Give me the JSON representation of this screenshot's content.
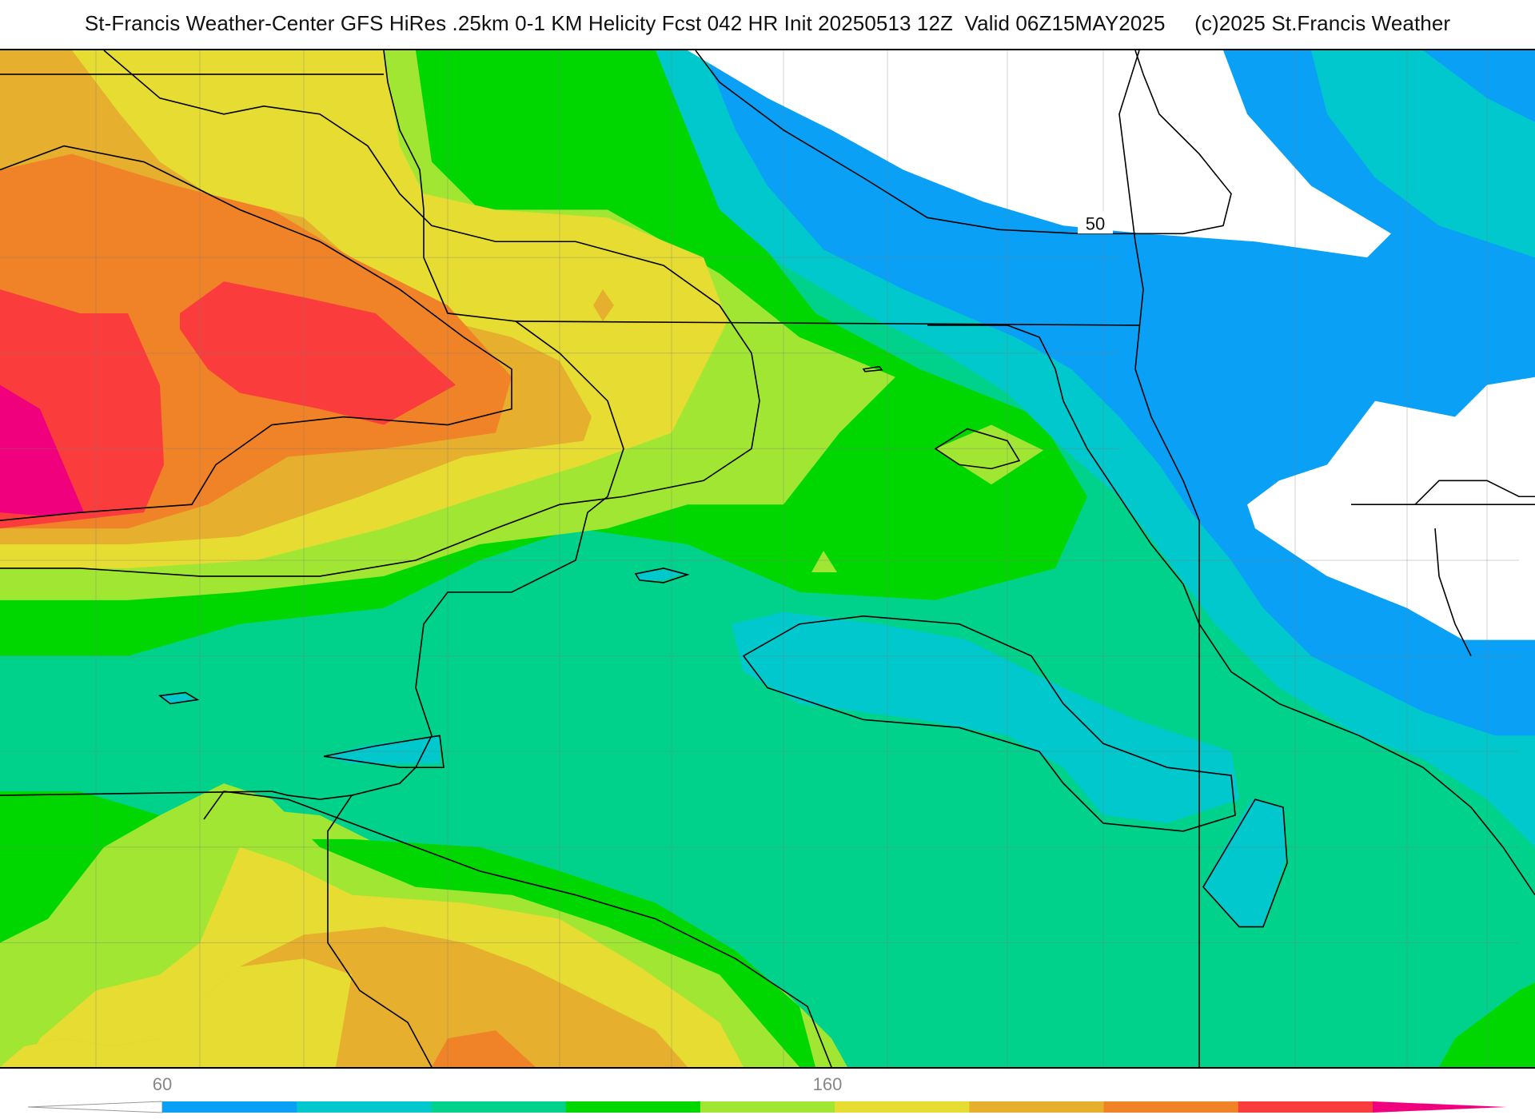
{
  "header": {
    "title": "St-Francis Weather-Center GFS HiRes .25km 0-1 KM Helicity Fcst 042 HR Init 20250513 12Z  Valid 06Z15MAY2025     (c)2025 St.Francis Weather"
  },
  "map": {
    "contour_labels": [
      "50"
    ]
  },
  "legend": {
    "tick_labels": [
      "60",
      "160"
    ],
    "bins": [
      "#ffffff",
      "#0aa0f5",
      "#00c8cd",
      "#00d28c",
      "#00d700",
      "#a0e632",
      "#e6dc32",
      "#e6af2d",
      "#f08228",
      "#fa3c3c",
      "#f0007d"
    ]
  }
}
